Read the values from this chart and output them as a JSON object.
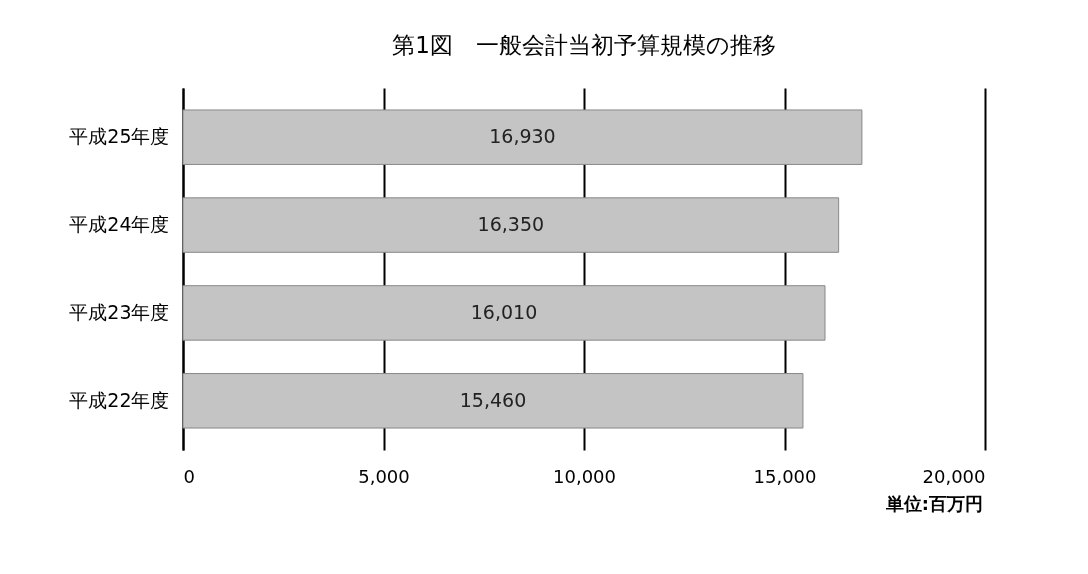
{
  "chart_data": {
    "type": "bar",
    "orientation": "horizontal",
    "title": "第1図　一般会計当初予算規模の推移",
    "categories": [
      "平成25年度",
      "平成24年度",
      "平成23年度",
      "平成22年度"
    ],
    "values": [
      16930,
      16350,
      16010,
      15460
    ],
    "value_labels": [
      "16,930",
      "16,350",
      "16,010",
      "15,460"
    ],
    "color": "#c4c4c4",
    "xlim": [
      0,
      20000
    ],
    "xticks": [
      0,
      {
        "value": 5000,
        "label": "5,000"
      },
      {
        "value": 10000,
        "label": "10,000"
      },
      {
        "value": 15000,
        "label": "15,000"
      },
      {
        "value": 20000,
        "label": "20,000"
      }
    ],
    "grid": "x",
    "annotations": [
      "単位:百万円"
    ]
  }
}
